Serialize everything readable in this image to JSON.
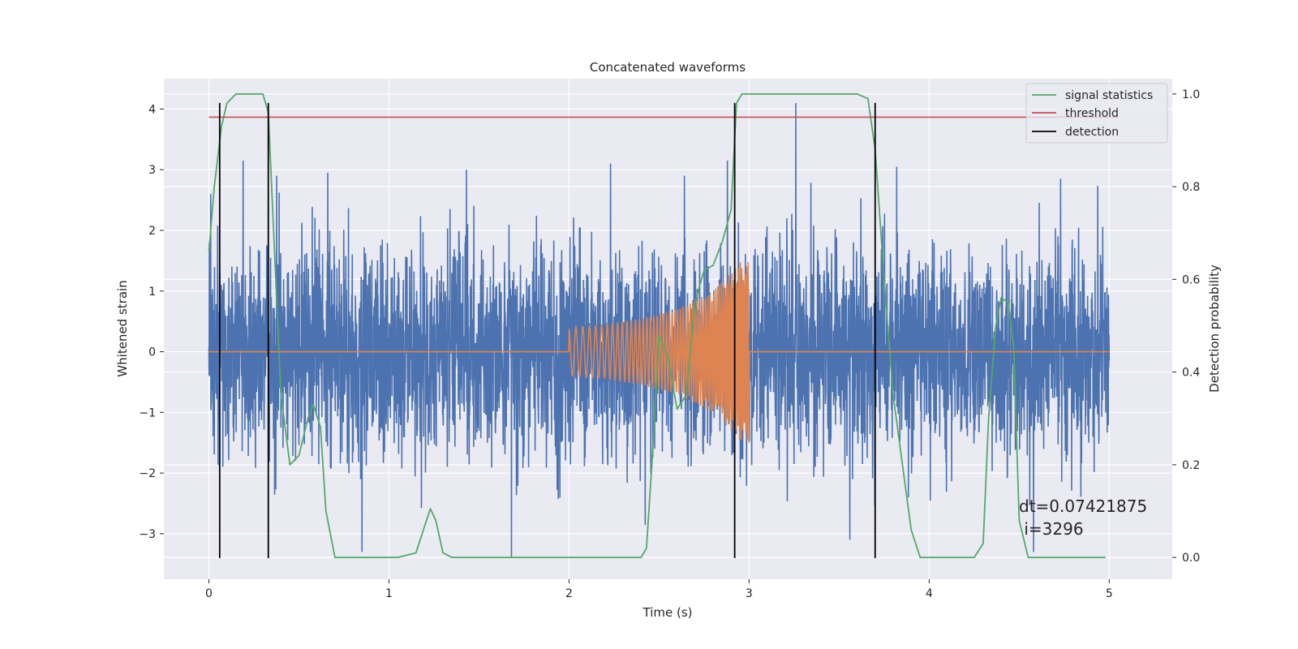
{
  "chart_data": {
    "type": "line",
    "title": "Concatenated waveforms",
    "xlabel": "Time (s)",
    "ylabel": "Whitened strain",
    "y2label": "Detection probability",
    "xlim": [
      -0.25,
      5.35
    ],
    "ylim": [
      -3.75,
      4.5
    ],
    "y2lim": [
      -0.047,
      1.033
    ],
    "xticks": [
      0,
      1,
      2,
      3,
      4,
      5
    ],
    "xtick_labels": [
      "0",
      "1",
      "2",
      "3",
      "4",
      "5"
    ],
    "yticks": [
      -3,
      -2,
      -1,
      0,
      1,
      2,
      3,
      4
    ],
    "ytick_labels": [
      "−3",
      "−2",
      "−1",
      "0",
      "1",
      "2",
      "3",
      "4"
    ],
    "y2ticks": [
      0.0,
      0.2,
      0.4,
      0.6,
      0.8,
      1.0
    ],
    "y2tick_labels": [
      "0.0",
      "0.2",
      "0.4",
      "0.6",
      "0.8",
      "1.0"
    ],
    "grid": true,
    "legend_position": "top-right",
    "legend": [
      "signal statistics",
      "threshold",
      "detection"
    ],
    "annotation_lines": [
      "dt=0.07421875",
      " i=3296"
    ],
    "colors": {
      "background": "#eaeaf2",
      "grid": "#ffffff",
      "strain": "#4c72b0",
      "template": "#dd8452",
      "statistic": "#55a868",
      "threshold": "#c44e52",
      "detection": "#000000"
    },
    "series": [
      {
        "name": null,
        "kind": "whitened strain noise",
        "x_range": [
          0,
          5
        ],
        "typical_amplitude": 1.0,
        "notable_peaks": [
          {
            "x": 0.01,
            "y": 2.6
          },
          {
            "x": 0.19,
            "y": 3.15
          },
          {
            "x": 0.66,
            "y": 2.95
          },
          {
            "x": 0.85,
            "y": -3.3
          },
          {
            "x": 1.43,
            "y": 3.0
          },
          {
            "x": 1.68,
            "y": -3.4
          },
          {
            "x": 2.23,
            "y": 3.1
          },
          {
            "x": 2.88,
            "y": 3.15
          },
          {
            "x": 2.88,
            "y": -3.1
          },
          {
            "x": 3.26,
            "y": 4.1
          },
          {
            "x": 3.56,
            "y": -3.1
          },
          {
            "x": 3.82,
            "y": 3.05
          },
          {
            "x": 4.58,
            "y": -3.3
          },
          {
            "x": 4.73,
            "y": 2.85
          }
        ]
      },
      {
        "name": null,
        "kind": "injected chirp template",
        "x": [
          0,
          2,
          2.2,
          2.4,
          2.6,
          2.8,
          2.9,
          3.0,
          3.0,
          5.0
        ],
        "envelope": [
          0,
          0.4,
          0.45,
          0.55,
          0.7,
          1.0,
          1.3,
          1.65,
          0,
          0
        ]
      },
      {
        "name": "signal statistics",
        "axis": "right",
        "x": [
          0.0,
          0.03,
          0.07,
          0.1,
          0.15,
          0.3,
          0.33,
          0.36,
          0.4,
          0.45,
          0.5,
          0.55,
          0.58,
          0.62,
          0.65,
          0.7,
          0.75,
          1.05,
          1.15,
          1.2,
          1.23,
          1.26,
          1.3,
          1.35,
          2.4,
          2.43,
          2.46,
          2.5,
          2.55,
          2.6,
          2.65,
          2.7,
          2.75,
          2.8,
          2.85,
          2.9,
          2.93,
          2.96,
          3.0,
          3.6,
          3.66,
          3.7,
          3.75,
          3.8,
          3.9,
          3.95,
          4.25,
          4.3,
          4.33,
          4.37,
          4.4,
          4.44,
          4.47,
          4.5,
          4.55,
          4.6,
          4.98
        ],
        "y": [
          0.66,
          0.8,
          0.93,
          0.98,
          1.0,
          1.0,
          0.96,
          0.7,
          0.35,
          0.2,
          0.22,
          0.3,
          0.33,
          0.28,
          0.1,
          0.0,
          0.0,
          0.0,
          0.01,
          0.07,
          0.105,
          0.08,
          0.01,
          0.0,
          0.0,
          0.02,
          0.2,
          0.48,
          0.43,
          0.32,
          0.35,
          0.55,
          0.62,
          0.63,
          0.68,
          0.75,
          0.98,
          1.0,
          1.0,
          1.0,
          0.99,
          0.88,
          0.6,
          0.35,
          0.06,
          0.0,
          0.0,
          0.03,
          0.3,
          0.5,
          0.56,
          0.55,
          0.45,
          0.08,
          0.0,
          0.0,
          0.0
        ]
      },
      {
        "name": "threshold",
        "axis": "right",
        "x": [
          0,
          5.05
        ],
        "y": [
          0.95,
          0.95
        ]
      },
      {
        "name": "detection",
        "axis": "left",
        "x": [
          0.06,
          0.33,
          2.92,
          3.7
        ],
        "y_range": [
          -3.4,
          4.1
        ]
      }
    ]
  }
}
